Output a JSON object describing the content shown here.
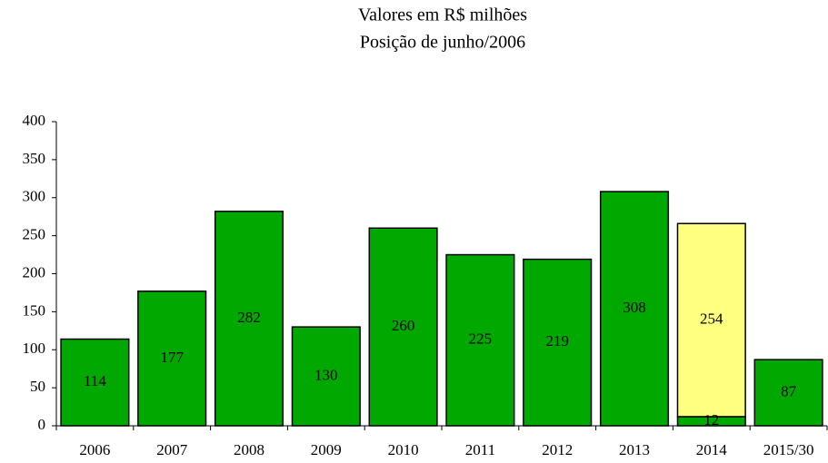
{
  "chart_data": {
    "type": "stacked_bar",
    "title": "Valores em R$ milhões",
    "subtitle": "Posição de junho/2006",
    "categories": [
      "2006",
      "2007",
      "2008",
      "2009",
      "2010",
      "2011",
      "2012",
      "2013",
      "2014",
      "2015/30"
    ],
    "series": [
      {
        "color": "#00a800",
        "values": [
          114,
          177,
          282,
          130,
          260,
          225,
          219,
          308,
          12,
          87
        ]
      },
      {
        "color": "#ffff80",
        "values": [
          null,
          null,
          null,
          null,
          null,
          null,
          null,
          null,
          254,
          null
        ]
      }
    ],
    "ylim": [
      0,
      400
    ],
    "yticks": [
      0,
      50,
      100,
      150,
      200,
      250,
      300,
      350,
      400
    ],
    "grid": false
  }
}
